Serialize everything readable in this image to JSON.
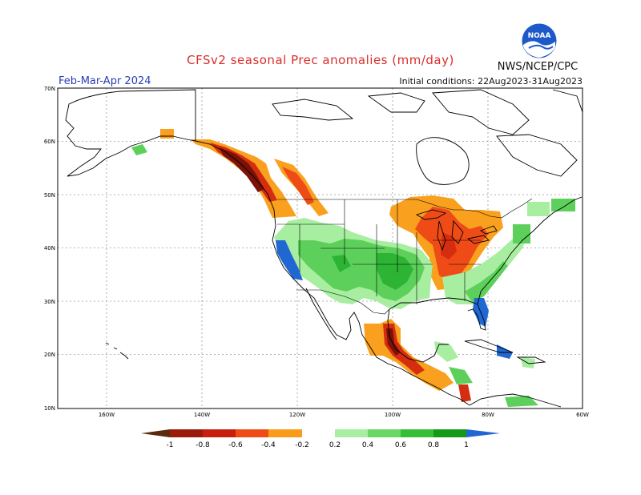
{
  "header": {
    "title": "CFSv2 seasonal Prec anomalies (mm/day)",
    "period": "Feb-Mar-Apr 2024",
    "initial_conditions": "Initial conditions: 22Aug2023-31Aug2023",
    "agency": "NWS/NCEP/CPC",
    "logo_text": "NOAA"
  },
  "map": {
    "lat_labels": [
      "70N",
      "60N",
      "50N",
      "40N",
      "30N",
      "20N",
      "10N"
    ],
    "lon_labels": [
      "160W",
      "140W",
      "120W",
      "100W",
      "80W",
      "60W"
    ]
  },
  "legend": {
    "labels": [
      "-1",
      "-0.8",
      "-0.6",
      "-0.4",
      "-0.2",
      "0.2",
      "0.4",
      "0.6",
      "0.8",
      "1"
    ],
    "colors": [
      "#5a2a10",
      "#9b1a0a",
      "#c81e0e",
      "#ef4b17",
      "#f99c1b",
      "#ffffff",
      "#a8eea0",
      "#6ad865",
      "#35bf38",
      "#159a18",
      "#2167d4"
    ]
  },
  "colors": {
    "very_dry": "#7a1208",
    "dry": "#d52d10",
    "moderately_dry": "#f0561e",
    "slightly_dry": "#f9a01e",
    "slightly_wet": "#a8eea0",
    "wet": "#5dd05c",
    "very_wet": "#2db434",
    "extreme_wet": "#2167d4"
  }
}
